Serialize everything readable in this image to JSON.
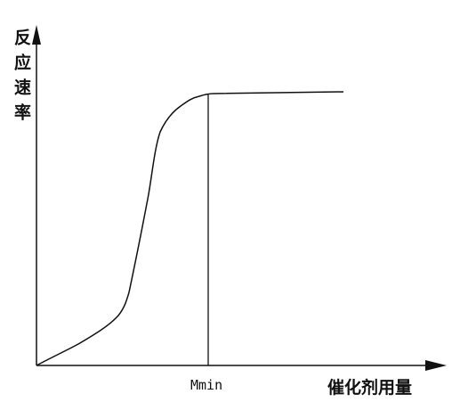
{
  "y_axis_label": "反应速率",
  "x_axis_label": "催化剂用量",
  "mmin_label": "Mmin"
}
